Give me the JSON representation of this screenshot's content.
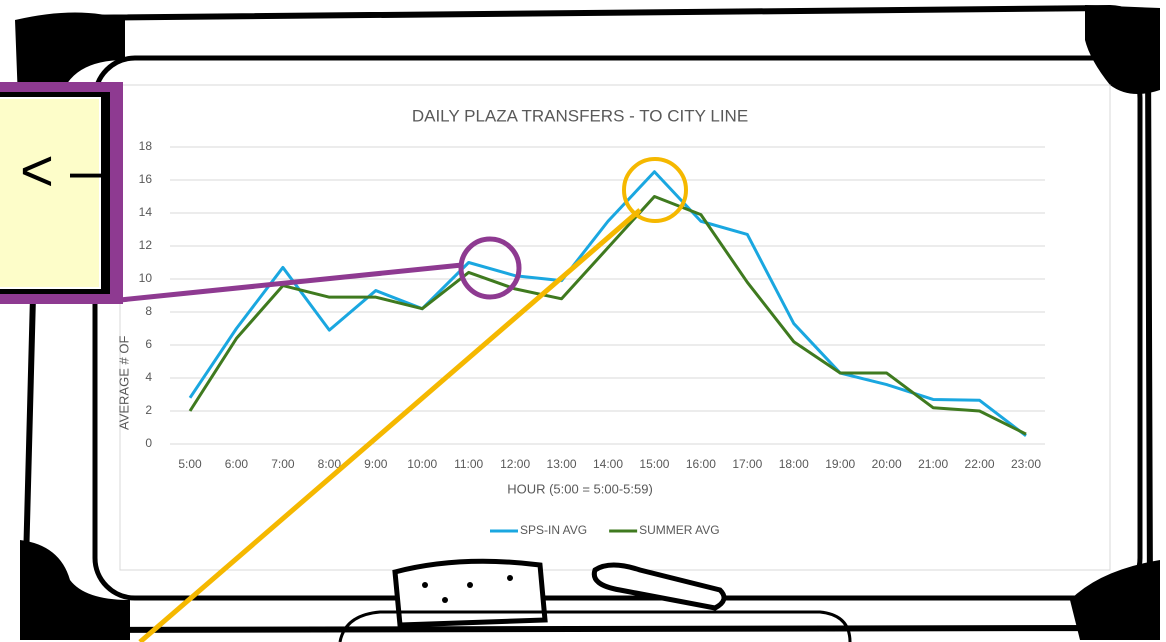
{
  "callout_text": "< –",
  "chart_data": {
    "type": "line",
    "title": "DAILY PLAZA TRANSFERS - TO CITY LINE",
    "x_label": "HOUR (5:00 = 5:00-5:59)",
    "y_label": "AVERAGE # OF",
    "categories": [
      "5:00",
      "6:00",
      "7:00",
      "8:00",
      "9:00",
      "10:00",
      "11:00",
      "12:00",
      "13:00",
      "14:00",
      "15:00",
      "16:00",
      "17:00",
      "18:00",
      "19:00",
      "20:00",
      "21:00",
      "22:00",
      "23:00"
    ],
    "series": [
      {
        "name": "SPS-IN AVG",
        "color": "#1aa7e0",
        "values": [
          2.8,
          7.0,
          10.7,
          6.9,
          9.3,
          8.2,
          11.0,
          10.2,
          9.9,
          13.5,
          16.5,
          13.5,
          12.7,
          7.3,
          4.3,
          3.6,
          2.7,
          2.65,
          0.5
        ]
      },
      {
        "name": "SUMMER AVG",
        "color": "#3f7a1f",
        "values": [
          2.0,
          6.4,
          9.6,
          8.9,
          8.9,
          8.2,
          10.4,
          9.4,
          8.8,
          11.9,
          15.0,
          13.9,
          9.8,
          6.2,
          4.3,
          4.3,
          2.2,
          2.0,
          0.6
        ]
      }
    ],
    "ylim": [
      0,
      18
    ],
    "yticks": [
      0,
      2,
      4,
      6,
      8,
      10,
      12,
      14,
      16,
      18
    ],
    "grid": true,
    "legend": "bottom"
  }
}
